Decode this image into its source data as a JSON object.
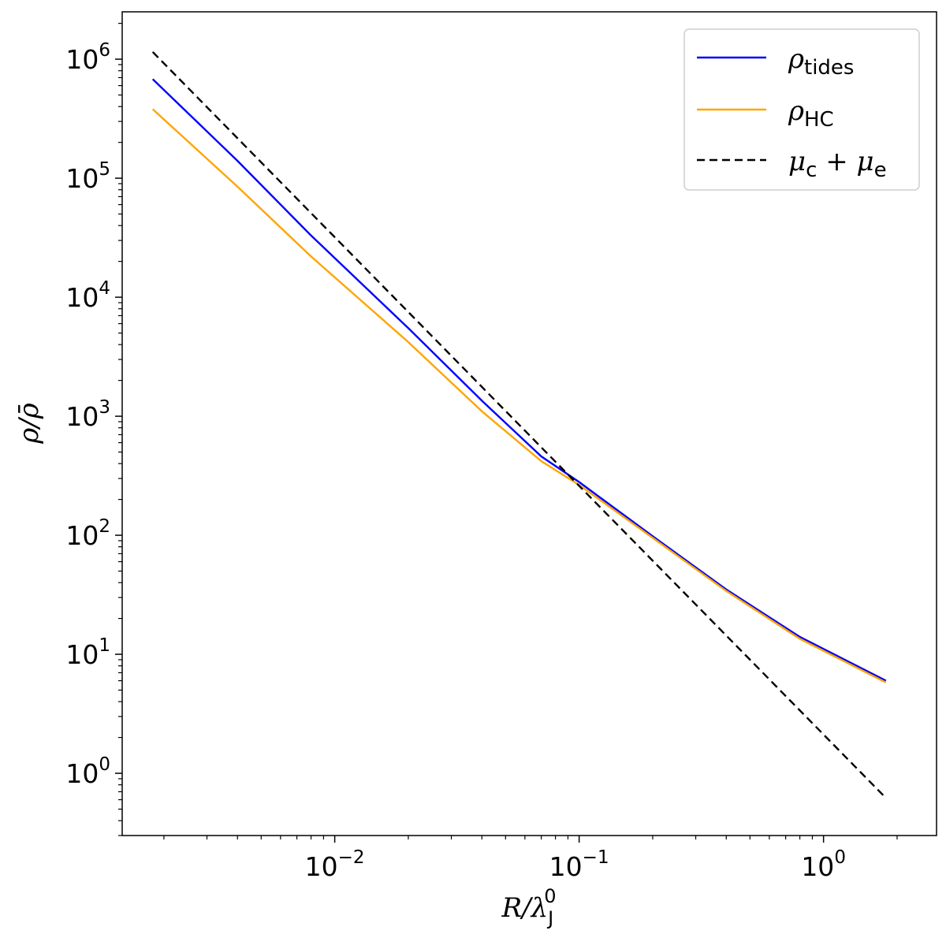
{
  "chart_data": {
    "type": "line",
    "xscale": "log",
    "yscale": "log",
    "xlim": [
      0.00135,
      2.9
    ],
    "ylim": [
      0.3,
      2500000
    ],
    "xlabel": "R/λJ0",
    "ylabel": "ρ/ρ̄",
    "legend_placement": "top-right",
    "grid": false,
    "x_ticks": [
      {
        "value": 0.01,
        "base": "10",
        "exp": "−2"
      },
      {
        "value": 0.1,
        "base": "10",
        "exp": "−1"
      },
      {
        "value": 1,
        "base": "10",
        "exp": "0"
      }
    ],
    "y_ticks": [
      {
        "value": 1,
        "base": "10",
        "exp": "0"
      },
      {
        "value": 10,
        "base": "10",
        "exp": "1"
      },
      {
        "value": 100,
        "base": "10",
        "exp": "2"
      },
      {
        "value": 1000,
        "base": "10",
        "exp": "3"
      },
      {
        "value": 10000,
        "base": "10",
        "exp": "4"
      },
      {
        "value": 100000,
        "base": "10",
        "exp": "5"
      },
      {
        "value": 1000000,
        "base": "10",
        "exp": "6"
      }
    ],
    "series": [
      {
        "name": "ρtides",
        "label_main": "ρ",
        "label_sub": "tides",
        "color": "#0000ff",
        "dash": "solid",
        "x": [
          0.0018,
          0.004,
          0.008,
          0.02,
          0.04,
          0.07,
          0.1,
          0.2,
          0.4,
          0.8,
          1.8
        ],
        "y": [
          680000,
          140000,
          33000,
          5500,
          1350,
          460,
          280,
          98,
          35,
          14,
          6.0
        ]
      },
      {
        "name": "ρHC",
        "label_main": "ρ",
        "label_sub": "HC",
        "color": "#ffa500",
        "dash": "solid",
        "x": [
          0.0018,
          0.004,
          0.008,
          0.02,
          0.04,
          0.07,
          0.1,
          0.2,
          0.4,
          0.8,
          1.8
        ],
        "y": [
          380000,
          85000,
          22000,
          4200,
          1100,
          420,
          265,
          95,
          34,
          13.5,
          5.8
        ]
      },
      {
        "name": "μc + μe",
        "label_main": "μc + μe",
        "color": "#000000",
        "dash": "dashed",
        "x": [
          0.0018,
          1.8
        ],
        "y": [
          1150000,
          0.62
        ]
      }
    ]
  }
}
